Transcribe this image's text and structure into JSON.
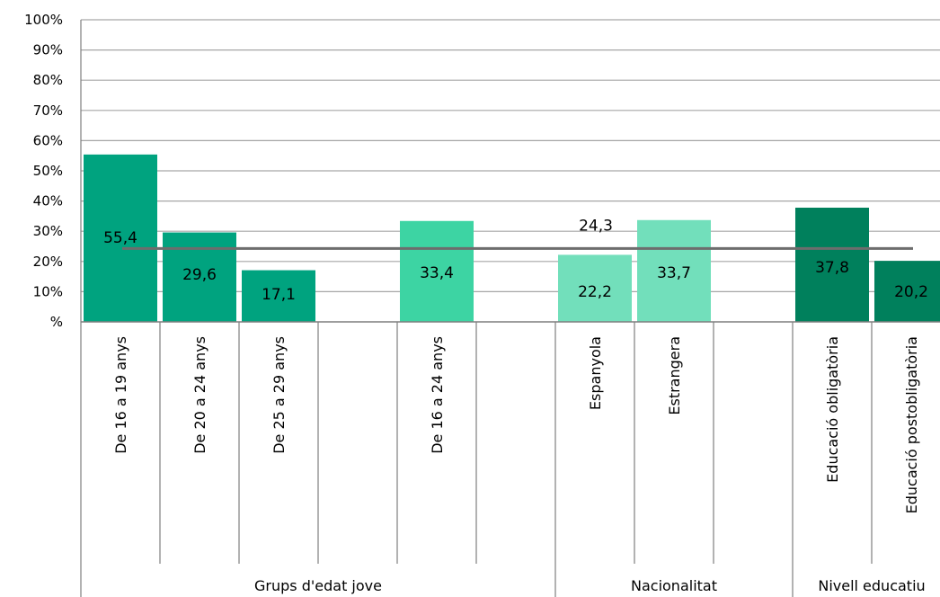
{
  "chart_data": {
    "type": "bar",
    "ylim": [
      0,
      100
    ],
    "yticks": [
      "%",
      "10%",
      "20%",
      "30%",
      "40%",
      "50%",
      "60%",
      "70%",
      "80%",
      "90%",
      "100%"
    ],
    "grid": true,
    "categories": [
      "De 16 a 19 anys",
      "De 20 a 24 anys",
      "De 25 a 29 anys",
      "",
      "De 16 a 24 anys",
      "",
      "Espanyola",
      "Estrangera",
      "",
      "Educació obligatòria",
      "Educació postobligatòria"
    ],
    "values": [
      55.4,
      29.6,
      17.1,
      null,
      33.4,
      null,
      22.2,
      33.7,
      null,
      37.8,
      20.2
    ],
    "value_labels": [
      "55,4",
      "29,6",
      "17,1",
      "",
      "33,4",
      "",
      "22,2",
      "33,7",
      "",
      "37,8",
      "20,2"
    ],
    "colors": [
      "#00a37f",
      "#00a37f",
      "#00a37f",
      "",
      "#3dd4a3",
      "",
      "#72dfbb",
      "#72dfbb",
      "",
      "#00805c",
      "#00805c"
    ],
    "groups": [
      {
        "label": "Grups d'edat jove",
        "start": 0,
        "end": 5
      },
      {
        "label": "Nacionalitat",
        "start": 6,
        "end": 8
      },
      {
        "label": "Nivell educatiu",
        "start": 9,
        "end": 10
      }
    ],
    "reference_line": {
      "value": 24.3,
      "label": "24,3",
      "color": "#6d6d6d"
    }
  }
}
